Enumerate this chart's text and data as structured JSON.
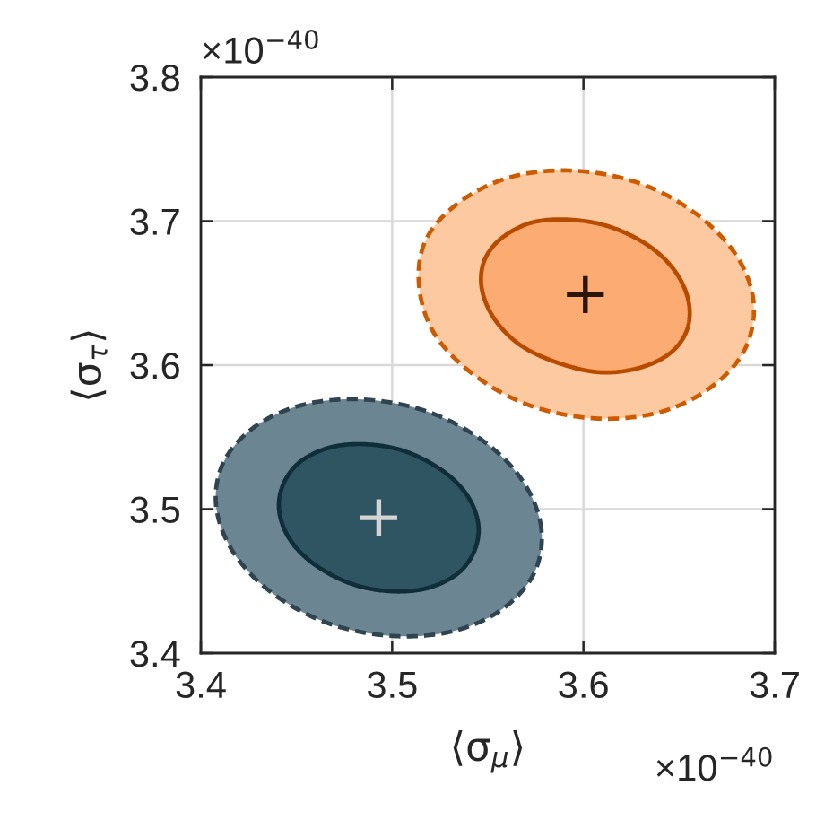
{
  "chart_data": {
    "type": "scatter",
    "xlabel": "⟨σ$_{μ}$⟩",
    "ylabel": "⟨σ$_{τ}$⟩",
    "annotations": [
      "×10$^{−40}$",
      "×10$^{−40}$"
    ],
    "xlim": [
      3.4,
      3.7
    ],
    "xticks": [
      3.4,
      3.5,
      3.6,
      3.7
    ],
    "ylim": [
      3.4,
      3.8
    ],
    "yticks": [
      3.4,
      3.5,
      3.6,
      3.7,
      3.8
    ],
    "grid": true,
    "series": [
      {
        "type": "area",
        "color": "#6b8592",
        "line_style": "dashed",
        "x": [
          3.578,
          3.569,
          3.549,
          3.52,
          3.487,
          3.455,
          3.429,
          3.412,
          3.408,
          3.417,
          3.437,
          3.466,
          3.499,
          3.531,
          3.557,
          3.574,
          3.578
        ],
        "values": [
          3.486,
          3.518,
          3.546,
          3.567,
          3.576,
          3.573,
          3.558,
          3.533,
          3.502,
          3.47,
          3.442,
          3.421,
          3.412,
          3.415,
          3.43,
          3.455,
          3.486
        ]
      },
      {
        "type": "area",
        "color": "#2f5562",
        "line_style": "solid",
        "x": [
          3.545,
          3.539,
          3.526,
          3.507,
          3.487,
          3.468,
          3.452,
          3.443,
          3.441,
          3.447,
          3.46,
          3.479,
          3.499,
          3.518,
          3.534,
          3.543,
          3.545
        ],
        "values": [
          3.49,
          3.51,
          3.527,
          3.54,
          3.545,
          3.543,
          3.533,
          3.517,
          3.498,
          3.478,
          3.461,
          3.448,
          3.443,
          3.445,
          3.455,
          3.471,
          3.49
        ]
      },
      {
        "color": "#d4d4d4",
        "marker": "cross",
        "x": [
          3.493
        ],
        "values": [
          3.494
        ]
      },
      {
        "type": "area",
        "color": "#fdc9a0",
        "line_style": "dashed",
        "x": [
          3.689,
          3.68,
          3.659,
          3.63,
          3.596,
          3.563,
          3.536,
          3.518,
          3.514,
          3.522,
          3.543,
          3.572,
          3.606,
          3.639,
          3.666,
          3.684,
          3.689
        ],
        "values": [
          3.643,
          3.676,
          3.705,
          3.726,
          3.735,
          3.731,
          3.714,
          3.688,
          3.656,
          3.622,
          3.593,
          3.572,
          3.563,
          3.567,
          3.584,
          3.61,
          3.643
        ]
      },
      {
        "type": "area",
        "color": "#fcab72",
        "line_style": "solid",
        "x": [
          3.655,
          3.648,
          3.634,
          3.614,
          3.593,
          3.573,
          3.557,
          3.548,
          3.547,
          3.554,
          3.568,
          3.588,
          3.609,
          3.629,
          3.645,
          3.654,
          3.655
        ],
        "values": [
          3.644,
          3.665,
          3.683,
          3.696,
          3.701,
          3.699,
          3.688,
          3.672,
          3.652,
          3.631,
          3.613,
          3.601,
          3.595,
          3.598,
          3.608,
          3.624,
          3.644
        ]
      },
      {
        "color": "#2b1605",
        "marker": "cross",
        "x": [
          3.601
        ],
        "values": [
          3.649
        ]
      }
    ]
  }
}
